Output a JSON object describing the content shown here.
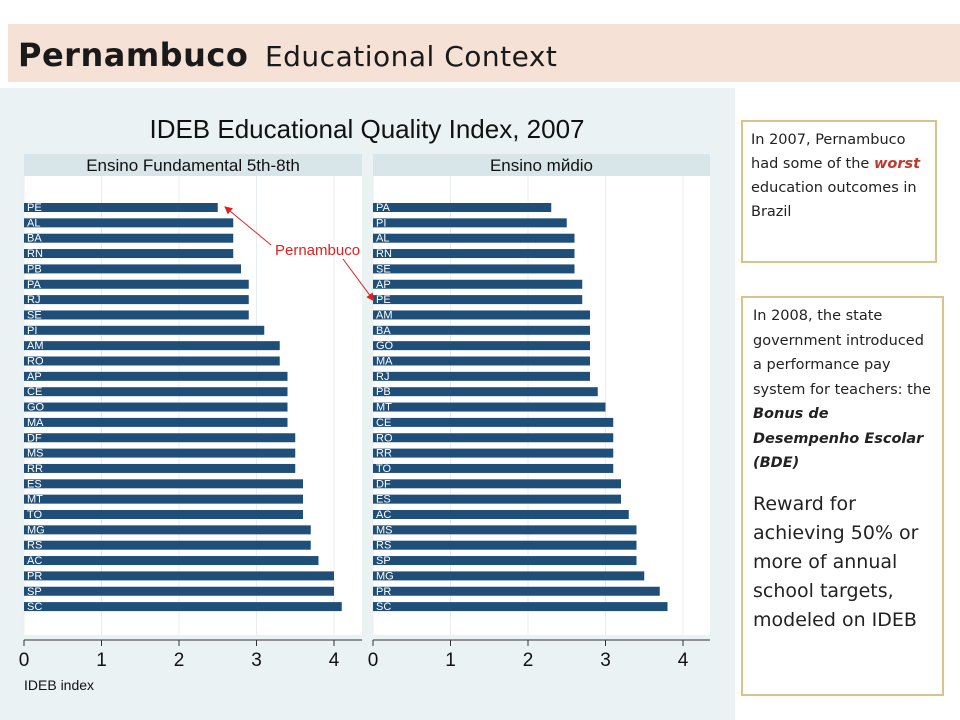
{
  "header": {
    "title_bold": "Pernambuco",
    "title_rest": "Educational Context"
  },
  "notes": {
    "box1_pre": "In 2007, Pernambuco had some of the ",
    "box1_emph": "worst",
    "box1_post": " education outcomes in Brazil",
    "box2_pre": "In 2008, the state government introduced a performance pay system for teachers: the ",
    "box2_emph": "Bonus de Desempenho Escolar (BDE)",
    "box2_reward": "Reward for achieving 50% or more of annual school targets, modeled on IDEB"
  },
  "colors": {
    "bar": "#1f4e79",
    "panel_bg": "#eaf2f3",
    "annotation": "#e02020",
    "header_bg": "#f5e1d6",
    "box_border": "#d8c48a",
    "emphasis": "#c0392b"
  },
  "chart_data": {
    "type": "bar",
    "orientation": "horizontal",
    "title": "IDEB Educational Quality Index, 2007",
    "xlabel": "IDEB index",
    "xlim": [
      0,
      4.3
    ],
    "x_ticks": [
      "0",
      "1",
      "2",
      "3",
      "4"
    ],
    "grid": true,
    "annotation": {
      "text": "Pernambuco",
      "target_category": "PE"
    },
    "panels": [
      {
        "title": "Ensino Fundamental 5th-8th",
        "categories": [
          "PE",
          "AL",
          "BA",
          "RN",
          "PB",
          "PA",
          "RJ",
          "SE",
          "PI",
          "AM",
          "RO",
          "AP",
          "CE",
          "GO",
          "MA",
          "DF",
          "MS",
          "RR",
          "ES",
          "MT",
          "TO",
          "MG",
          "RS",
          "AC",
          "PR",
          "SP",
          "SC"
        ],
        "values": [
          2.5,
          2.7,
          2.7,
          2.7,
          2.8,
          2.9,
          2.9,
          2.9,
          3.1,
          3.3,
          3.3,
          3.4,
          3.4,
          3.4,
          3.4,
          3.5,
          3.5,
          3.5,
          3.6,
          3.6,
          3.6,
          3.7,
          3.7,
          3.8,
          4.0,
          4.0,
          4.1
        ]
      },
      {
        "title": "Ensino mйdio",
        "categories": [
          "PA",
          "PI",
          "AL",
          "RN",
          "SE",
          "AP",
          "PE",
          "AM",
          "BA",
          "GO",
          "MA",
          "RJ",
          "PB",
          "MT",
          "CE",
          "RO",
          "RR",
          "TO",
          "DF",
          "ES",
          "AC",
          "MS",
          "RS",
          "SP",
          "MG",
          "PR",
          "SC"
        ],
        "values": [
          2.3,
          2.5,
          2.6,
          2.6,
          2.6,
          2.7,
          2.7,
          2.8,
          2.8,
          2.8,
          2.8,
          2.8,
          2.9,
          3.0,
          3.1,
          3.1,
          3.1,
          3.1,
          3.2,
          3.2,
          3.3,
          3.4,
          3.4,
          3.4,
          3.5,
          3.7,
          3.8
        ]
      }
    ]
  }
}
